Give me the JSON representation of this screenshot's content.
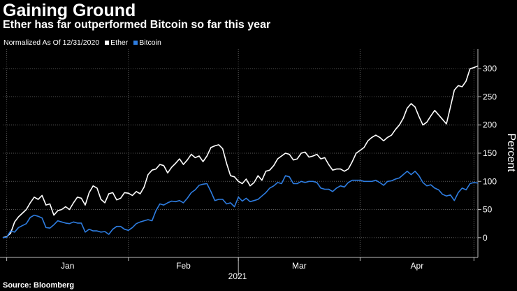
{
  "header": {
    "title": "Gaining Ground",
    "subtitle": "Ether has far outperformed Bitcoin so far this year"
  },
  "legend": {
    "note": "Normalized As Of 12/31/2020",
    "items": [
      {
        "label": "Ether",
        "color": "#ffffff"
      },
      {
        "label": "Bitcoin",
        "color": "#2e7de1"
      }
    ]
  },
  "source": "Source: Bloomberg",
  "chart_data": {
    "type": "line",
    "title": "Gaining Ground",
    "subtitle": "Ether has far outperformed Bitcoin so far this year",
    "xlabel": "2021",
    "ylabel": "Percent",
    "x_tick_labels": [
      "Jan",
      "Feb",
      "Mar",
      "Apr"
    ],
    "y_ticks": [
      0,
      50,
      100,
      150,
      200,
      250,
      300
    ],
    "ylim": [
      -35,
      335
    ],
    "xlim": [
      "2020-12-31",
      "2021-04-26"
    ],
    "month_boundaries": [
      "2021-01-01",
      "2021-02-01",
      "2021-03-01",
      "2021-04-01"
    ],
    "grid": true,
    "legend_position": "top-left",
    "series": [
      {
        "name": "Ether",
        "color": "#ffffff",
        "points": [
          [
            "2020-12-31",
            0
          ],
          [
            "2021-01-01",
            2
          ],
          [
            "2021-01-02",
            8
          ],
          [
            "2021-01-03",
            28
          ],
          [
            "2021-01-04",
            37
          ],
          [
            "2021-01-06",
            50
          ],
          [
            "2021-01-07",
            62
          ],
          [
            "2021-01-08",
            72
          ],
          [
            "2021-01-09",
            68
          ],
          [
            "2021-01-10",
            75
          ],
          [
            "2021-01-11",
            58
          ],
          [
            "2021-01-12",
            60
          ],
          [
            "2021-01-13",
            40
          ],
          [
            "2021-01-14",
            48
          ],
          [
            "2021-01-15",
            50
          ],
          [
            "2021-01-16",
            55
          ],
          [
            "2021-01-17",
            50
          ],
          [
            "2021-01-18",
            62
          ],
          [
            "2021-01-19",
            72
          ],
          [
            "2021-01-20",
            70
          ],
          [
            "2021-01-21",
            58
          ],
          [
            "2021-01-22",
            80
          ],
          [
            "2021-01-23",
            92
          ],
          [
            "2021-01-24",
            88
          ],
          [
            "2021-01-25",
            68
          ],
          [
            "2021-01-26",
            62
          ],
          [
            "2021-01-27",
            78
          ],
          [
            "2021-01-28",
            80
          ],
          [
            "2021-01-29",
            67
          ],
          [
            "2021-01-30",
            70
          ],
          [
            "2021-01-31",
            80
          ],
          [
            "2021-02-01",
            79
          ],
          [
            "2021-02-02",
            75
          ],
          [
            "2021-02-03",
            82
          ],
          [
            "2021-02-04",
            78
          ],
          [
            "2021-02-05",
            90
          ],
          [
            "2021-02-06",
            112
          ],
          [
            "2021-02-07",
            120
          ],
          [
            "2021-02-08",
            122
          ],
          [
            "2021-02-09",
            130
          ],
          [
            "2021-02-10",
            128
          ],
          [
            "2021-02-11",
            115
          ],
          [
            "2021-02-12",
            125
          ],
          [
            "2021-02-13",
            132
          ],
          [
            "2021-02-14",
            140
          ],
          [
            "2021-02-15",
            130
          ],
          [
            "2021-02-16",
            138
          ],
          [
            "2021-02-17",
            148
          ],
          [
            "2021-02-18",
            142
          ],
          [
            "2021-02-19",
            145
          ],
          [
            "2021-02-20",
            135
          ],
          [
            "2021-02-21",
            145
          ],
          [
            "2021-02-22",
            160
          ],
          [
            "2021-02-23",
            163
          ],
          [
            "2021-02-24",
            165
          ],
          [
            "2021-02-25",
            158
          ],
          [
            "2021-02-26",
            132
          ],
          [
            "2021-02-27",
            110
          ],
          [
            "2021-02-28",
            108
          ],
          [
            "2021-03-01",
            100
          ],
          [
            "2021-03-02",
            96
          ],
          [
            "2021-03-03",
            104
          ],
          [
            "2021-03-04",
            92
          ],
          [
            "2021-03-05",
            98
          ],
          [
            "2021-03-06",
            110
          ],
          [
            "2021-03-07",
            102
          ],
          [
            "2021-03-08",
            118
          ],
          [
            "2021-03-09",
            120
          ],
          [
            "2021-03-10",
            128
          ],
          [
            "2021-03-11",
            140
          ],
          [
            "2021-03-12",
            145
          ],
          [
            "2021-03-13",
            150
          ],
          [
            "2021-03-14",
            148
          ],
          [
            "2021-03-15",
            138
          ],
          [
            "2021-03-16",
            140
          ],
          [
            "2021-03-17",
            150
          ],
          [
            "2021-03-18",
            152
          ],
          [
            "2021-03-19",
            143
          ],
          [
            "2021-03-20",
            145
          ],
          [
            "2021-03-21",
            148
          ],
          [
            "2021-03-22",
            140
          ],
          [
            "2021-03-23",
            142
          ],
          [
            "2021-03-24",
            130
          ],
          [
            "2021-03-25",
            120
          ],
          [
            "2021-03-26",
            122
          ],
          [
            "2021-03-27",
            122
          ],
          [
            "2021-03-28",
            118
          ],
          [
            "2021-03-29",
            122
          ],
          [
            "2021-03-30",
            135
          ],
          [
            "2021-03-31",
            150
          ],
          [
            "2021-04-01",
            155
          ],
          [
            "2021-04-02",
            160
          ],
          [
            "2021-04-03",
            172
          ],
          [
            "2021-04-04",
            178
          ],
          [
            "2021-04-05",
            182
          ],
          [
            "2021-04-06",
            178
          ],
          [
            "2021-04-07",
            172
          ],
          [
            "2021-04-08",
            178
          ],
          [
            "2021-04-09",
            182
          ],
          [
            "2021-04-10",
            192
          ],
          [
            "2021-04-11",
            200
          ],
          [
            "2021-04-12",
            212
          ],
          [
            "2021-04-13",
            230
          ],
          [
            "2021-04-14",
            238
          ],
          [
            "2021-04-15",
            232
          ],
          [
            "2021-04-16",
            215
          ],
          [
            "2021-04-17",
            200
          ],
          [
            "2021-04-18",
            205
          ],
          [
            "2021-04-19",
            216
          ],
          [
            "2021-04-20",
            226
          ],
          [
            "2021-04-21",
            218
          ],
          [
            "2021-04-22",
            210
          ],
          [
            "2021-04-23",
            202
          ],
          [
            "2021-04-24",
            232
          ],
          [
            "2021-04-25",
            262
          ],
          [
            "2021-04-26",
            270
          ],
          [
            "2021-04-27",
            268
          ],
          [
            "2021-04-28",
            278
          ],
          [
            "2021-04-29",
            300
          ],
          [
            "2021-04-30",
            302
          ],
          [
            "2021-05-01",
            305
          ]
        ]
      },
      {
        "name": "Bitcoin",
        "color": "#2e7de1",
        "points": [
          [
            "2020-12-31",
            0
          ],
          [
            "2021-01-01",
            1
          ],
          [
            "2021-01-02",
            12
          ],
          [
            "2021-01-03",
            10
          ],
          [
            "2021-01-04",
            18
          ],
          [
            "2021-01-06",
            25
          ],
          [
            "2021-01-07",
            36
          ],
          [
            "2021-01-08",
            40
          ],
          [
            "2021-01-09",
            38
          ],
          [
            "2021-01-10",
            35
          ],
          [
            "2021-01-11",
            18
          ],
          [
            "2021-01-12",
            17
          ],
          [
            "2021-01-13",
            23
          ],
          [
            "2021-01-14",
            30
          ],
          [
            "2021-01-15",
            28
          ],
          [
            "2021-01-16",
            26
          ],
          [
            "2021-01-17",
            25
          ],
          [
            "2021-01-18",
            28
          ],
          [
            "2021-01-19",
            26
          ],
          [
            "2021-01-20",
            26
          ],
          [
            "2021-01-21",
            10
          ],
          [
            "2021-01-22",
            15
          ],
          [
            "2021-01-23",
            12
          ],
          [
            "2021-01-24",
            12
          ],
          [
            "2021-01-25",
            10
          ],
          [
            "2021-01-26",
            11
          ],
          [
            "2021-01-27",
            6
          ],
          [
            "2021-01-28",
            15
          ],
          [
            "2021-01-29",
            20
          ],
          [
            "2021-01-30",
            20
          ],
          [
            "2021-01-31",
            15
          ],
          [
            "2021-02-01",
            13
          ],
          [
            "2021-02-02",
            18
          ],
          [
            "2021-02-03",
            25
          ],
          [
            "2021-02-04",
            28
          ],
          [
            "2021-02-05",
            30
          ],
          [
            "2021-02-06",
            32
          ],
          [
            "2021-02-07",
            30
          ],
          [
            "2021-02-08",
            48
          ],
          [
            "2021-02-09",
            60
          ],
          [
            "2021-02-10",
            58
          ],
          [
            "2021-02-11",
            62
          ],
          [
            "2021-02-12",
            65
          ],
          [
            "2021-02-13",
            64
          ],
          [
            "2021-02-14",
            66
          ],
          [
            "2021-02-15",
            62
          ],
          [
            "2021-02-16",
            70
          ],
          [
            "2021-02-17",
            80
          ],
          [
            "2021-02-18",
            85
          ],
          [
            "2021-02-19",
            93
          ],
          [
            "2021-02-20",
            95
          ],
          [
            "2021-02-21",
            96
          ],
          [
            "2021-02-22",
            82
          ],
          [
            "2021-02-23",
            66
          ],
          [
            "2021-02-24",
            68
          ],
          [
            "2021-02-25",
            68
          ],
          [
            "2021-02-26",
            60
          ],
          [
            "2021-02-27",
            62
          ],
          [
            "2021-02-28",
            55
          ],
          [
            "2021-03-01",
            72
          ],
          [
            "2021-03-02",
            65
          ],
          [
            "2021-03-03",
            70
          ],
          [
            "2021-03-04",
            64
          ],
          [
            "2021-03-05",
            66
          ],
          [
            "2021-03-06",
            68
          ],
          [
            "2021-03-07",
            74
          ],
          [
            "2021-03-08",
            80
          ],
          [
            "2021-03-09",
            88
          ],
          [
            "2021-03-10",
            92
          ],
          [
            "2021-03-11",
            98
          ],
          [
            "2021-03-12",
            96
          ],
          [
            "2021-03-13",
            110
          ],
          [
            "2021-03-14",
            108
          ],
          [
            "2021-03-15",
            96
          ],
          [
            "2021-03-16",
            96
          ],
          [
            "2021-03-17",
            100
          ],
          [
            "2021-03-18",
            98
          ],
          [
            "2021-03-19",
            100
          ],
          [
            "2021-03-20",
            100
          ],
          [
            "2021-03-21",
            98
          ],
          [
            "2021-03-22",
            88
          ],
          [
            "2021-03-23",
            86
          ],
          [
            "2021-03-24",
            86
          ],
          [
            "2021-03-25",
            82
          ],
          [
            "2021-03-26",
            88
          ],
          [
            "2021-03-27",
            92
          ],
          [
            "2021-03-28",
            90
          ],
          [
            "2021-03-29",
            98
          ],
          [
            "2021-03-30",
            102
          ],
          [
            "2021-03-31",
            102
          ],
          [
            "2021-04-01",
            102
          ],
          [
            "2021-04-02",
            100
          ],
          [
            "2021-04-03",
            100
          ],
          [
            "2021-04-04",
            100
          ],
          [
            "2021-04-05",
            102
          ],
          [
            "2021-04-06",
            98
          ],
          [
            "2021-04-07",
            93
          ],
          [
            "2021-04-08",
            100
          ],
          [
            "2021-04-09",
            101
          ],
          [
            "2021-04-10",
            104
          ],
          [
            "2021-04-11",
            106
          ],
          [
            "2021-04-12",
            112
          ],
          [
            "2021-04-13",
            118
          ],
          [
            "2021-04-14",
            112
          ],
          [
            "2021-04-15",
            118
          ],
          [
            "2021-04-16",
            110
          ],
          [
            "2021-04-17",
            98
          ],
          [
            "2021-04-18",
            92
          ],
          [
            "2021-04-19",
            94
          ],
          [
            "2021-04-20",
            88
          ],
          [
            "2021-04-21",
            85
          ],
          [
            "2021-04-22",
            77
          ],
          [
            "2021-04-23",
            74
          ],
          [
            "2021-04-24",
            76
          ],
          [
            "2021-04-25",
            66
          ],
          [
            "2021-04-26",
            80
          ],
          [
            "2021-04-27",
            88
          ],
          [
            "2021-04-28",
            85
          ],
          [
            "2021-04-29",
            96
          ],
          [
            "2021-04-30",
            98
          ],
          [
            "2021-05-01",
            97
          ]
        ]
      }
    ]
  }
}
